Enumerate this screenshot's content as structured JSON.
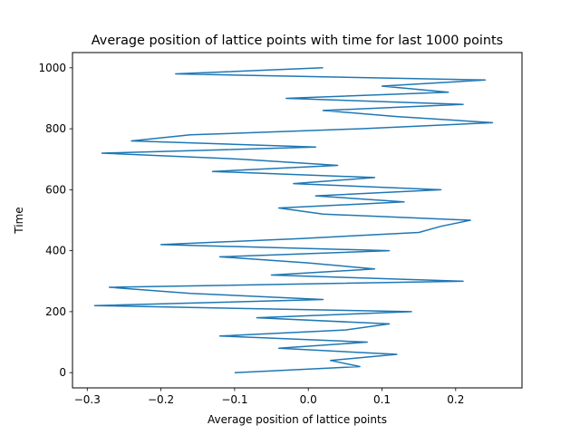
{
  "chart_data": {
    "type": "line",
    "title": "Average position of lattice points with time for last 1000 points",
    "xlabel": "Average position of lattice points",
    "ylabel": "Time",
    "xlim": [
      -0.32,
      0.29
    ],
    "ylim": [
      -50,
      1050
    ],
    "xticks": [
      -0.3,
      -0.2,
      -0.1,
      0.0,
      0.1,
      0.2
    ],
    "xtick_labels": [
      "−0.3",
      "−0.2",
      "−0.1",
      "0.0",
      "0.1",
      "0.2"
    ],
    "yticks": [
      0,
      200,
      400,
      600,
      800,
      1000
    ],
    "ytick_labels": [
      "0",
      "200",
      "400",
      "600",
      "800",
      "1000"
    ],
    "grid": false,
    "line_color": "#1f77b4",
    "series": [
      {
        "time": [
          0,
          20,
          40,
          60,
          80,
          100,
          120,
          140,
          160,
          180,
          200,
          220,
          240,
          260,
          280,
          300,
          320,
          340,
          360,
          380,
          400,
          420,
          440,
          460,
          480,
          500,
          520,
          540,
          560,
          580,
          600,
          620,
          640,
          660,
          680,
          700,
          720,
          740,
          760,
          780,
          800,
          820,
          840,
          860,
          880,
          900,
          920,
          940,
          960,
          980,
          1000
        ],
        "position": [
          -0.1,
          0.07,
          0.03,
          0.12,
          -0.04,
          0.08,
          -0.12,
          0.05,
          0.11,
          -0.07,
          0.14,
          -0.29,
          0.02,
          -0.16,
          -0.27,
          0.21,
          -0.05,
          0.09,
          0.0,
          -0.12,
          0.11,
          -0.2,
          -0.01,
          0.15,
          0.18,
          0.22,
          0.02,
          -0.04,
          0.13,
          0.01,
          0.18,
          -0.02,
          0.09,
          -0.13,
          0.04,
          -0.09,
          -0.28,
          0.01,
          -0.24,
          -0.16,
          0.07,
          0.25,
          0.12,
          0.02,
          0.21,
          -0.03,
          0.19,
          0.1,
          0.24,
          -0.18,
          0.02
        ]
      }
    ]
  }
}
